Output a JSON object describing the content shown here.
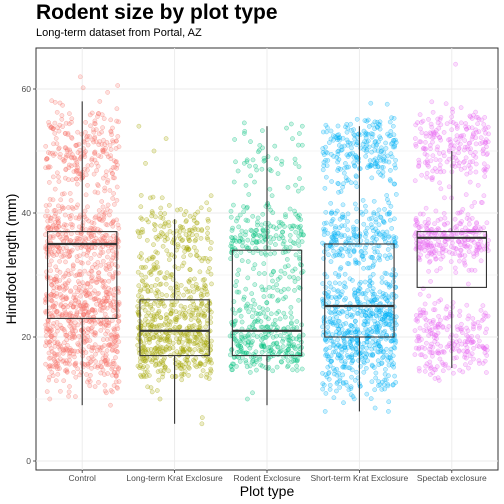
{
  "chart_data": {
    "type": "box+jitter",
    "title": "Rodent size by plot type",
    "subtitle": "Long-term dataset from Portal, AZ",
    "xlabel": "Plot type",
    "ylabel": "Hindfoot length (mm)",
    "ylim": [
      0,
      67
    ],
    "y_ticks": [
      0,
      20,
      40,
      60
    ],
    "grid": true,
    "legend": "none",
    "categories": [
      "Control",
      "Long-term Krat Exclosure",
      "Rodent Exclosure",
      "Short-term Krat Exclosure",
      "Spectab exclosure"
    ],
    "colors": [
      "#F8766D",
      "#A3A500",
      "#00BF7D",
      "#00B0F6",
      "#E76BF3"
    ],
    "boxes": [
      {
        "category": "Control",
        "min": 9,
        "q1": 23,
        "median": 35,
        "q3": 37,
        "max": 58
      },
      {
        "category": "Long-term Krat Exclosure",
        "min": 6,
        "q1": 17,
        "median": 21,
        "q3": 26,
        "max": 39
      },
      {
        "category": "Rodent Exclosure",
        "min": 9,
        "q1": 17,
        "median": 21,
        "q3": 34,
        "max": 54
      },
      {
        "category": "Short-term Krat Exclosure",
        "min": 8,
        "q1": 20,
        "median": 25,
        "q3": 35,
        "max": 54
      },
      {
        "category": "Spectab exclosure",
        "min": 15,
        "q1": 28,
        "median": 36,
        "q3": 37,
        "max": 50
      }
    ],
    "point_clusters": [
      {
        "category": "Control",
        "clusters": [
          [
            50,
            4,
            240
          ],
          [
            36,
            3,
            320
          ],
          [
            27,
            2.5,
            180
          ],
          [
            22,
            3,
            260
          ],
          [
            16,
            2.5,
            180
          ]
        ],
        "outliers": [
          9,
          10,
          11,
          58
        ]
      },
      {
        "category": "Long-term Krat Exclosure",
        "clusters": [
          [
            36,
            3,
            160
          ],
          [
            27,
            2.5,
            130
          ],
          [
            21,
            2.5,
            260
          ],
          [
            16,
            2,
            150
          ]
        ],
        "outliers": [
          48,
          50,
          52,
          54,
          6,
          7,
          10
        ]
      },
      {
        "category": "Rodent Exclosure",
        "clusters": [
          [
            49,
            3,
            50
          ],
          [
            36,
            2.5,
            170
          ],
          [
            28,
            3,
            60
          ],
          [
            21,
            2.5,
            150
          ],
          [
            17,
            1.5,
            110
          ]
        ],
        "outliers": [
          52,
          54,
          10,
          11
        ]
      },
      {
        "category": "Short-term Krat Exclosure",
        "clusters": [
          [
            50,
            3,
            220
          ],
          [
            36,
            3,
            230
          ],
          [
            25,
            3,
            260
          ],
          [
            20,
            2,
            160
          ],
          [
            15,
            2.5,
            150
          ]
        ],
        "outliers": [
          8,
          8,
          54
        ]
      },
      {
        "category": "Spectab exclosure",
        "clusters": [
          [
            51,
            3,
            210
          ],
          [
            36,
            2.5,
            260
          ],
          [
            21,
            2.5,
            180
          ],
          [
            16,
            1.5,
            50
          ]
        ],
        "outliers": [
          64,
          55,
          13,
          15
        ]
      }
    ]
  }
}
